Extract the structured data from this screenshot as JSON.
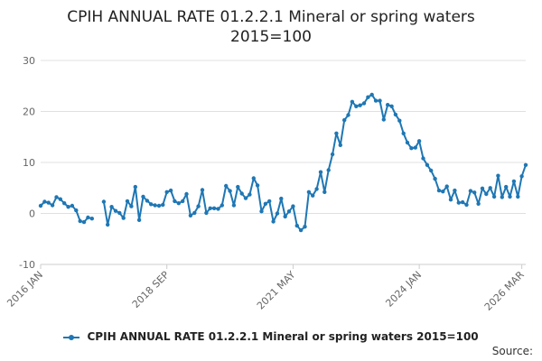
{
  "chart_data": {
    "type": "line",
    "title": "CPIH ANNUAL RATE 01.2.2.1 Mineral or spring waters",
    "subtitle": "2015=100",
    "xlabel": "",
    "ylabel": "",
    "ylim": [
      -10,
      30
    ],
    "yticks": [
      -10,
      0,
      10,
      20,
      30
    ],
    "grid": true,
    "legend_position": "bottom",
    "x_start": "2016-01",
    "x_tick_labels": [
      {
        "label": "2016 JAN",
        "index": 0
      },
      {
        "label": "2018 SEP",
        "index": 32
      },
      {
        "label": "2021 MAY",
        "index": 64
      },
      {
        "label": "2024 JAN",
        "index": 96
      },
      {
        "label": "2026 MAR",
        "index": 122
      }
    ],
    "series": [
      {
        "name": "CPIH ANNUAL RATE 01.2.2.1 Mineral or spring waters 2015=100",
        "color": "#1f77b4",
        "values": [
          1.5,
          2.3,
          2.1,
          1.6,
          3.2,
          2.8,
          2.0,
          1.3,
          1.5,
          0.6,
          -1.5,
          -1.7,
          -0.8,
          -1.0,
          null,
          null,
          2.3,
          -2.2,
          1.3,
          0.5,
          0.1,
          -0.9,
          2.4,
          1.4,
          5.2,
          -1.3,
          3.3,
          2.5,
          1.8,
          1.6,
          1.5,
          1.7,
          4.2,
          4.5,
          2.4,
          2.0,
          2.4,
          3.8,
          -0.4,
          0.1,
          1.4,
          4.6,
          0.1,
          1.0,
          1.0,
          0.9,
          1.6,
          5.4,
          4.4,
          1.6,
          5.2,
          3.9,
          3.0,
          3.7,
          6.9,
          5.5,
          0.4,
          1.9,
          2.4,
          -1.6,
          0.0,
          2.9,
          -0.6,
          0.4,
          1.4,
          -2.4,
          -3.3,
          -2.6,
          4.2,
          3.5,
          4.8,
          8.1,
          4.2,
          8.5,
          11.6,
          15.7,
          13.4,
          18.3,
          19.3,
          21.9,
          21.0,
          21.2,
          21.6,
          22.8,
          23.3,
          22.1,
          22.1,
          18.4,
          21.3,
          21.0,
          19.4,
          18.2,
          15.7,
          13.9,
          12.8,
          12.9,
          14.2,
          10.8,
          9.5,
          8.4,
          6.8,
          4.5,
          4.3,
          5.3,
          2.7,
          4.5,
          2.1,
          2.2,
          1.7,
          4.4,
          4.1,
          1.9,
          4.9,
          3.8,
          5.0,
          3.3,
          7.4,
          3.2,
          5.2,
          3.3,
          6.3,
          3.3,
          7.3,
          9.5
        ]
      }
    ]
  },
  "legend": {
    "label": "CPIH ANNUAL RATE 01.2.2.1 Mineral or spring waters 2015=100"
  },
  "footer": {
    "source_label": "Source:"
  }
}
